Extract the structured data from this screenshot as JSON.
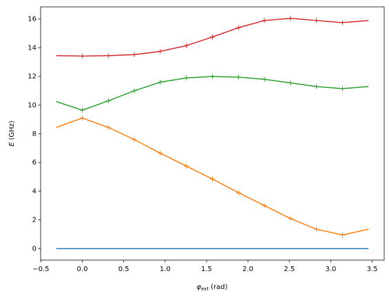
{
  "chart_data": {
    "type": "line",
    "xlabel_symbol": "φ",
    "xlabel_subscript": "ext",
    "xlabel_unit": "(rad)",
    "ylabel_symbol": "E",
    "ylabel_unit": "(GHz)",
    "x": [
      -0.314,
      0,
      0.314,
      0.628,
      0.942,
      1.257,
      1.571,
      1.885,
      2.199,
      2.513,
      2.827,
      3.142,
      3.456
    ],
    "series": [
      {
        "color": "#1f77b4",
        "values": [
          0,
          0,
          0,
          0,
          0,
          0,
          0,
          0,
          0,
          0,
          0,
          0,
          0
        ]
      },
      {
        "color": "#ff7f0e",
        "values": [
          8.45,
          9.1,
          8.45,
          7.6,
          6.65,
          5.75,
          4.85,
          3.9,
          3.0,
          2.1,
          1.35,
          0.95,
          1.35
        ]
      },
      {
        "color": "#2ca02c",
        "values": [
          10.25,
          9.65,
          10.3,
          11.0,
          11.6,
          11.9,
          12.0,
          11.95,
          11.8,
          11.55,
          11.3,
          11.15,
          11.3
        ]
      },
      {
        "color": "#d62728",
        "values": [
          13.45,
          13.42,
          13.45,
          13.52,
          13.75,
          14.15,
          14.75,
          15.4,
          15.9,
          16.05,
          15.9,
          15.75,
          15.9
        ]
      }
    ],
    "xlim": [
      -0.503,
      3.645
    ],
    "ylim": [
      -0.8,
      16.85
    ],
    "xticks": [
      {
        "value": -0.5,
        "label": "−0.5"
      },
      {
        "value": 0,
        "label": "0.0"
      },
      {
        "value": 0.5,
        "label": "0.5"
      },
      {
        "value": 1,
        "label": "1.0"
      },
      {
        "value": 1.5,
        "label": "1.5"
      },
      {
        "value": 2,
        "label": "2.0"
      },
      {
        "value": 2.5,
        "label": "2.5"
      },
      {
        "value": 3,
        "label": "3.0"
      },
      {
        "value": 3.5,
        "label": "3.5"
      }
    ],
    "yticks": [
      0,
      2,
      4,
      6,
      8,
      10,
      12,
      14,
      16
    ],
    "marker": "+"
  }
}
